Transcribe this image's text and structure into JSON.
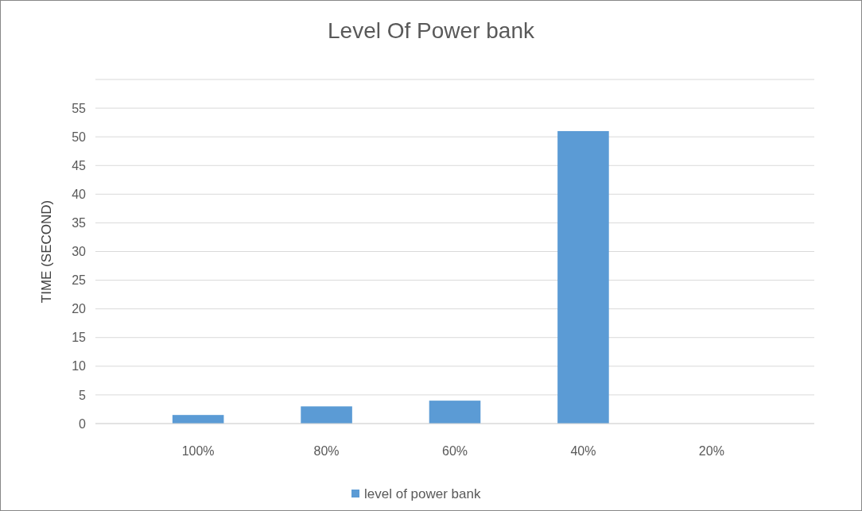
{
  "chart_data": {
    "type": "bar",
    "title": "Level Of Power bank",
    "ylabel": "TIME (SECOND)",
    "categories": [
      "100%",
      "80%",
      "60%",
      "40%",
      "20%"
    ],
    "series": [
      {
        "name": "level of power bank",
        "color": "#5b9bd5",
        "values": [
          1.5,
          3,
          4,
          51,
          0
        ]
      }
    ],
    "ylim": [
      0,
      60
    ],
    "yticks": [
      0,
      5,
      10,
      15,
      20,
      25,
      30,
      35,
      40,
      45,
      50,
      55,
      {
        "value": 60,
        "label": null
      }
    ],
    "grid": "y",
    "legend": "bottom"
  }
}
